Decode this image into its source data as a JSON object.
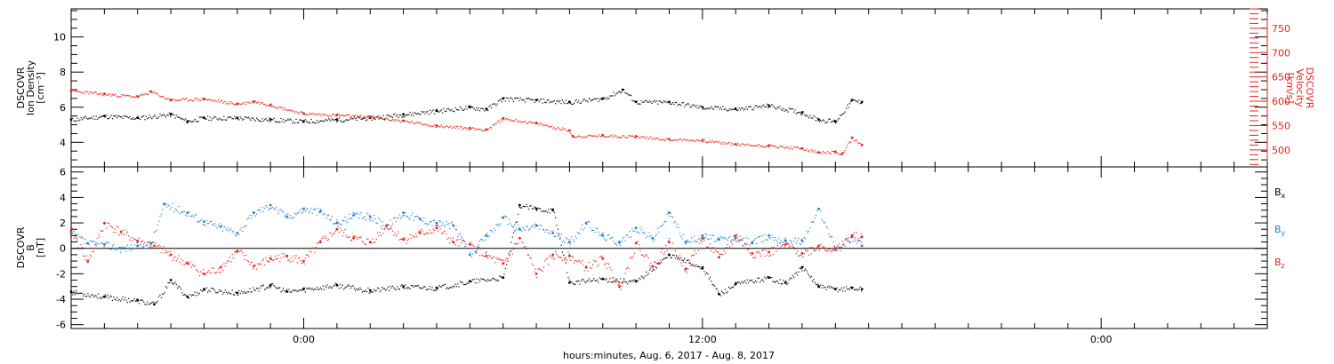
{
  "colors": {
    "axis": "#000000",
    "density": "#000000",
    "velocity": "#e8221c",
    "bx": "#000000",
    "by": "#1e7fd8",
    "bz": "#e8221c"
  },
  "xaxis": {
    "title": "hours:minutes, Aug.  6, 2017 - Aug.  8, 2017",
    "range_hours": [
      -7,
      29
    ],
    "major_ticks": [
      {
        "hour": 0,
        "label": "0:00"
      },
      {
        "hour": 12,
        "label": "12:00"
      },
      {
        "hour": 24,
        "label": "0:00"
      }
    ]
  },
  "chart_data": [
    {
      "type": "scatter",
      "title": "",
      "xlabel": "",
      "ylabel": "DSCOVR Ion Density [cm^-3]",
      "ylabel_lines": [
        "DSCOVR",
        "Ion Density",
        "[cm⁻³]"
      ],
      "ylim": [
        2.6,
        11.6
      ],
      "yticks": [
        4,
        6,
        8,
        10
      ],
      "right_ylabel": "DSCOVR Velocity [km/s]",
      "right_ylabel_lines": [
        "DSCOVR",
        "Velocity",
        "[km/s]"
      ],
      "right_ylim": [
        465,
        790
      ],
      "right_yticks": [
        500,
        550,
        600,
        650,
        700,
        750
      ],
      "series": [
        {
          "name": "Ion Density",
          "axis": "left",
          "x": [
            -7,
            -6,
            -5,
            -4,
            -3.5,
            -3,
            -2,
            -1,
            0,
            1,
            2,
            3,
            4,
            5,
            5.5,
            6,
            7,
            8,
            9,
            9.6,
            10,
            11,
            12,
            13,
            14,
            15,
            15.5,
            16,
            16.5,
            16.8
          ],
          "y": [
            5.3,
            5.5,
            5.4,
            5.6,
            5.2,
            5.4,
            5.4,
            5.3,
            5.2,
            5.3,
            5.4,
            5.6,
            5.8,
            6.0,
            5.9,
            6.5,
            6.4,
            6.3,
            6.5,
            7.0,
            6.3,
            6.3,
            6.0,
            5.9,
            6.1,
            5.7,
            5.3,
            5.2,
            6.4,
            6.3
          ]
        },
        {
          "name": "Velocity",
          "axis": "right",
          "x": [
            -7,
            -6,
            -5,
            -4.6,
            -4,
            -3,
            -2,
            -1.5,
            -1,
            0,
            1,
            2,
            3,
            4,
            5,
            5.5,
            6,
            7,
            8,
            8.1,
            9,
            10,
            11,
            12,
            13,
            14,
            15,
            15.5,
            16,
            16.2,
            16.5,
            16.8
          ],
          "y": [
            622,
            615,
            610,
            620,
            603,
            605,
            595,
            600,
            593,
            575,
            572,
            568,
            560,
            550,
            545,
            542,
            565,
            555,
            540,
            528,
            530,
            528,
            522,
            520,
            512,
            509,
            503,
            495,
            496,
            492,
            525,
            510
          ]
        }
      ]
    },
    {
      "type": "scatter",
      "title": "",
      "xlabel": "",
      "ylabel": "DSCOVR B [nT]",
      "ylabel_lines": [
        "DSCOVR",
        "B",
        "[nT]"
      ],
      "ylim": [
        -6.3,
        6.4
      ],
      "yticks": [
        -6,
        -4,
        -2,
        0,
        2,
        4,
        6
      ],
      "zero_line": true,
      "legend_placement": "right",
      "series": [
        {
          "name": "Bx",
          "label": "B",
          "subscript": "x",
          "x": [
            -7,
            -6,
            -5,
            -4.5,
            -4,
            -3.5,
            -3,
            -2,
            -1,
            -0.5,
            0,
            1,
            2,
            3,
            4,
            5,
            6,
            6.5,
            7,
            7.5,
            8,
            9,
            10,
            11,
            12,
            12.5,
            13,
            14,
            14.5,
            15,
            15.5,
            16,
            16.5,
            16.8
          ],
          "y": [
            -3.4,
            -3.8,
            -4.1,
            -4.4,
            -2.5,
            -3.8,
            -3.2,
            -3.5,
            -2.9,
            -3.4,
            -3.2,
            -2.9,
            -3.3,
            -3.0,
            -3.1,
            -2.6,
            -2.3,
            3.4,
            3.1,
            3.0,
            -2.7,
            -2.4,
            -2.6,
            -0.5,
            -1.5,
            -3.6,
            -2.8,
            -2.3,
            -2.7,
            -1.5,
            -3.0,
            -3.2,
            -3.1,
            -3.2
          ]
        },
        {
          "name": "By",
          "label": "B",
          "subscript": "y",
          "x": [
            -7,
            -6.5,
            -6,
            -5.5,
            -5,
            -4.6,
            -4.2,
            -3.5,
            -3,
            -2.5,
            -2,
            -1.5,
            -1,
            -0.5,
            0,
            0.5,
            1,
            1.5,
            2,
            2.5,
            3,
            3.5,
            4,
            4.5,
            5,
            5.5,
            6,
            6.5,
            7,
            7.5,
            8,
            8.5,
            9,
            9.5,
            10,
            10.5,
            11,
            11.5,
            12,
            12.5,
            13,
            13.5,
            14,
            14.5,
            15,
            15.5,
            16,
            16.5,
            16.8
          ],
          "y": [
            1.2,
            0.4,
            0.3,
            0.0,
            0.2,
            0.4,
            3.5,
            2.8,
            2.1,
            1.7,
            1.2,
            2.8,
            3.4,
            2.5,
            3.1,
            2.9,
            2.0,
            2.6,
            2.5,
            1.8,
            2.8,
            2.3,
            2.0,
            1.8,
            -0.5,
            1.0,
            2.4,
            1.5,
            1.8,
            1.2,
            0.5,
            2.0,
            1.0,
            0.5,
            1.6,
            0.8,
            2.8,
            0.5,
            1.0,
            0.7,
            0.8,
            0.5,
            1.0,
            0.6,
            0.6,
            3.1,
            0.0,
            0.9,
            0.2
          ]
        },
        {
          "name": "Bz",
          "label": "B",
          "subscript": "z",
          "x": [
            -7,
            -6.5,
            -6,
            -5.5,
            -5,
            -4.5,
            -4,
            -3.5,
            -3,
            -2.5,
            -2,
            -1.5,
            -1,
            -0.5,
            0,
            0.5,
            1,
            1.5,
            2,
            2.5,
            3,
            3.5,
            4,
            4.5,
            5,
            5.5,
            6,
            6.5,
            7,
            7.5,
            8,
            8.5,
            9,
            9.5,
            10,
            10.5,
            11,
            11.5,
            12,
            12.5,
            13,
            13.5,
            14,
            14.5,
            15,
            15.5,
            16,
            16.5,
            16.8
          ],
          "y": [
            1.4,
            -1.0,
            2.0,
            1.3,
            0.6,
            0.2,
            -0.5,
            -1.2,
            -2.0,
            -1.5,
            -0.2,
            -1.4,
            -0.8,
            -0.6,
            -1.0,
            0.5,
            1.5,
            0.8,
            0.5,
            1.8,
            0.7,
            1.2,
            1.6,
            0.5,
            0.3,
            -0.6,
            -1.2,
            0.8,
            -2.0,
            -0.5,
            -0.6,
            -1.5,
            -0.8,
            -3.0,
            0.4,
            -1.4,
            0.5,
            -1.6,
            0.8,
            -0.7,
            1.0,
            -0.4,
            -0.3,
            0.3,
            -0.4,
            0.2,
            -0.1,
            1.0,
            0.9
          ]
        }
      ]
    }
  ]
}
